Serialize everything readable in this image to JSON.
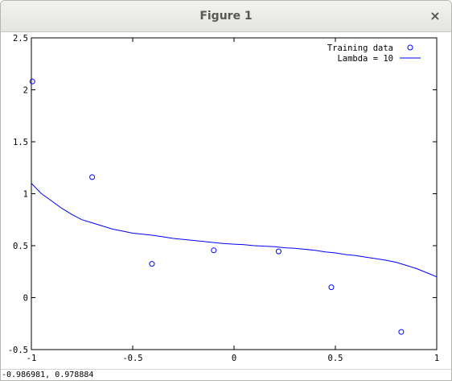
{
  "window": {
    "title": "Figure 1",
    "close_glyph": "×"
  },
  "status": {
    "coords": "-0.986981,  0.978884"
  },
  "chart_data": {
    "type": "line",
    "xlim": [
      -1,
      1
    ],
    "ylim": [
      -0.5,
      2.5
    ],
    "xticks": [
      -1,
      -0.5,
      0,
      0.5,
      1
    ],
    "xtick_labels": [
      "-1",
      "-0.5",
      "0",
      "0.5",
      "1"
    ],
    "yticks": [
      -0.5,
      0,
      0.5,
      1,
      1.5,
      2,
      2.5
    ],
    "ytick_labels": [
      "-0.5",
      "0",
      "0.5",
      "1",
      "1.5",
      "2",
      "2.5"
    ],
    "grid": false,
    "legend_position": "top-right",
    "series": [
      {
        "name": "Training data",
        "kind": "scatter",
        "marker": "circle",
        "color": "#0000ff",
        "x": [
          -0.995,
          -0.7,
          -0.405,
          -0.1,
          0.22,
          0.48,
          0.825
        ],
        "y": [
          2.08,
          1.16,
          0.325,
          0.455,
          0.445,
          0.1,
          -0.33
        ]
      },
      {
        "name": "Lambda = 10",
        "kind": "line",
        "color": "#0000ff",
        "x": [
          -1,
          -0.95,
          -0.9,
          -0.85,
          -0.8,
          -0.75,
          -0.7,
          -0.65,
          -0.6,
          -0.55,
          -0.5,
          -0.45,
          -0.4,
          -0.35,
          -0.3,
          -0.25,
          -0.2,
          -0.15,
          -0.1,
          -0.05,
          0,
          0.05,
          0.1,
          0.15,
          0.2,
          0.25,
          0.3,
          0.35,
          0.4,
          0.45,
          0.5,
          0.55,
          0.6,
          0.65,
          0.7,
          0.75,
          0.8,
          0.85,
          0.9,
          0.95,
          1
        ],
        "y": [
          1.1,
          1.0,
          0.93,
          0.86,
          0.8,
          0.75,
          0.72,
          0.69,
          0.66,
          0.64,
          0.62,
          0.61,
          0.6,
          0.585,
          0.57,
          0.56,
          0.55,
          0.54,
          0.53,
          0.52,
          0.515,
          0.51,
          0.5,
          0.495,
          0.49,
          0.48,
          0.475,
          0.465,
          0.455,
          0.44,
          0.43,
          0.415,
          0.405,
          0.39,
          0.375,
          0.36,
          0.34,
          0.31,
          0.28,
          0.24,
          0.2
        ]
      }
    ]
  }
}
